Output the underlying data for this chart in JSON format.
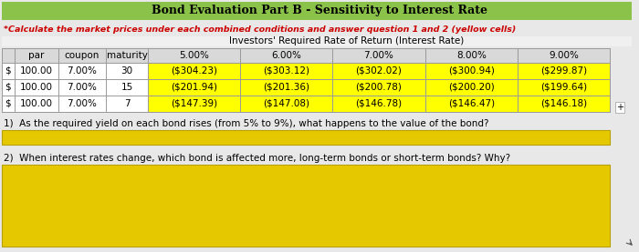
{
  "title": "Bond Evaluation Part B - Sensitivity to Interest Rate",
  "subtitle": "*Calculate the market prices under each combined conditions and answer question 1 and 2 (yellow cells)",
  "interest_rate_header": "Investors' Required Rate of Return (Interest Rate)",
  "header_row": [
    "par",
    "coupon",
    "maturity",
    "5.00%",
    "6.00%",
    "7.00%",
    "8.00%",
    "9.00%"
  ],
  "row_data": [
    [
      "$",
      "100.00",
      "7.00%",
      "30",
      "($304.23)",
      "($303.12)",
      "($302.02)",
      "($300.94)",
      "($299.87)"
    ],
    [
      "$",
      "100.00",
      "7.00%",
      "15",
      "($201.94)",
      "($201.36)",
      "($200.78)",
      "($200.20)",
      "($199.64)"
    ],
    [
      "$",
      "100.00",
      "7.00%",
      "7",
      "($147.39)",
      "($147.08)",
      "($146.78)",
      "($146.47)",
      "($146.18)"
    ]
  ],
  "q1": "1)  As the required yield on each bond rises (from 5% to 9%), what happens to the value of the bond?",
  "q2": "2)  When interest rates change, which bond is affected more, long-term bonds or short-term bonds? Why?",
  "title_bg": "#8bc34a",
  "title_color": "#000000",
  "subtitle_color": "#cc0000",
  "header_bg": "#d9d9d9",
  "data_yellow": "#ffff00",
  "answer_yellow": "#e6c800",
  "white": "#ffffff",
  "border_color": "#999999",
  "bg_color": "#e8e8e8"
}
